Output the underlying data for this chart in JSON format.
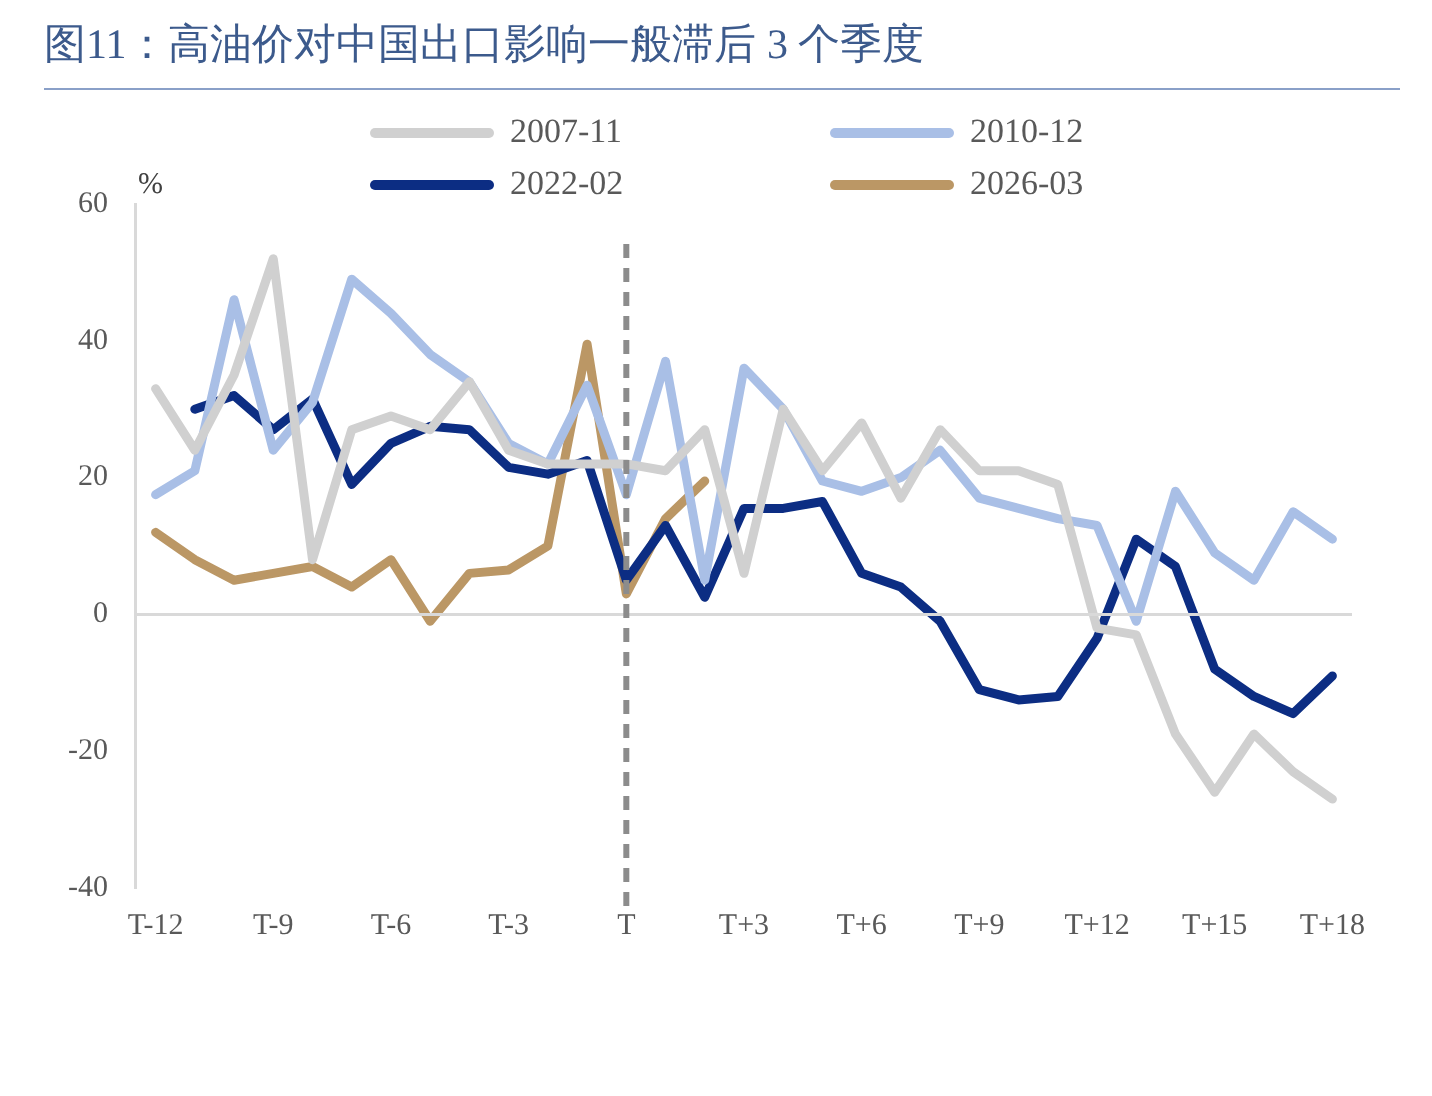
{
  "chart_data": {
    "type": "line",
    "title": "图11：高油价对中国出口影响一般滞后 3 个季度",
    "ylabel": "%",
    "categories": [
      "T-12",
      null,
      null,
      "T-9",
      null,
      null,
      "T-6",
      null,
      null,
      "T-3",
      null,
      null,
      "T",
      null,
      null,
      "T+3",
      null,
      null,
      "T+6",
      null,
      null,
      "T+9",
      null,
      null,
      "T+12",
      null,
      null,
      "T+15",
      null,
      null,
      "T+18"
    ],
    "series": [
      {
        "name": "2007-11",
        "color": "#d0d0d0",
        "values": [
          33,
          24,
          35,
          52,
          8,
          27,
          29,
          27,
          34,
          24,
          22,
          22,
          22,
          21,
          27,
          6,
          30,
          21,
          28,
          17,
          27,
          21,
          21,
          19,
          -2,
          -3,
          -17.5,
          -26,
          -17.5,
          -23,
          -27
        ]
      },
      {
        "name": "2010-12",
        "color": "#a9bfe6",
        "values": [
          17.5,
          21,
          46,
          24,
          31,
          49,
          44,
          38,
          34,
          25,
          22,
          33.5,
          17.5,
          37,
          5,
          36,
          30,
          19.5,
          18,
          20,
          24,
          17,
          15.5,
          14,
          13,
          -1,
          18,
          9,
          5,
          15,
          11
        ]
      },
      {
        "name": "2022-02",
        "color": "#0c2d83",
        "values": [
          null,
          30,
          32,
          27,
          31.5,
          19,
          25,
          27.5,
          27,
          21.5,
          20.5,
          22.5,
          5,
          13,
          2.5,
          15.5,
          15.5,
          16.5,
          6,
          4,
          -1,
          -11,
          -12.5,
          -12,
          -3.5,
          11,
          7,
          -8,
          -12,
          -14.5,
          -9
        ]
      },
      {
        "name": "2026-03",
        "color": "#bb9765",
        "values": [
          12,
          8,
          5,
          6,
          7,
          4,
          8,
          -1,
          6,
          6.5,
          10,
          39.5,
          3,
          14,
          19.5,
          null,
          null,
          null,
          null,
          null,
          null,
          null,
          null,
          null,
          null,
          null,
          null,
          null,
          null,
          null,
          null
        ]
      }
    ],
    "ylim": [
      -40,
      60
    ],
    "yticks": [
      -40,
      -20,
      0,
      20,
      40,
      60
    ],
    "grid": false,
    "legend": "top",
    "marker": "none",
    "line_style": "solid",
    "ref_lines": [
      {
        "axis": "x",
        "value": "T",
        "color": "#8c8c8c",
        "line_style": "dashed"
      }
    ]
  }
}
